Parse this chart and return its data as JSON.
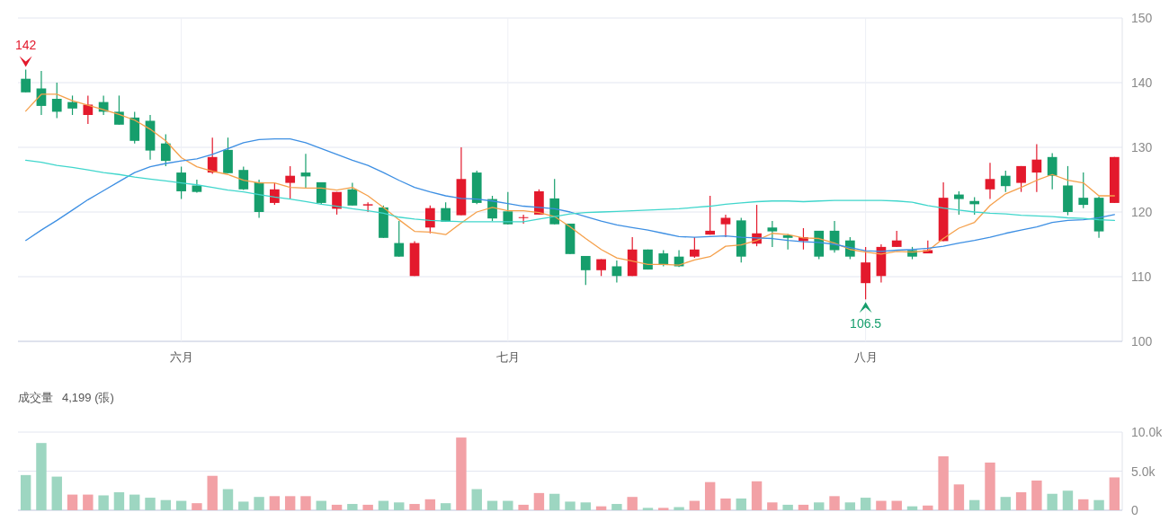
{
  "chart_data": [
    {
      "type": "candlestick",
      "categories": [
        null,
        null,
        null,
        null,
        null,
        null,
        null,
        null,
        null,
        null,
        "六月",
        null,
        null,
        null,
        null,
        null,
        null,
        null,
        null,
        null,
        null,
        null,
        null,
        null,
        null,
        null,
        null,
        null,
        null,
        null,
        null,
        "七月",
        null,
        null,
        null,
        null,
        null,
        null,
        null,
        null,
        null,
        null,
        null,
        null,
        null,
        null,
        null,
        null,
        null,
        null,
        null,
        null,
        null,
        null,
        "八月",
        null,
        null,
        null,
        null,
        null,
        null,
        null,
        null,
        null,
        null,
        null,
        null,
        null,
        null,
        null,
        null
      ],
      "ohlc": [
        [
          140.6,
          142,
          138.5,
          138.5
        ],
        [
          139.1,
          141.8,
          135.0,
          136.4
        ],
        [
          137.5,
          140.0,
          134.5,
          135.5
        ],
        [
          137.0,
          138.0,
          135.0,
          136.0
        ],
        [
          135.0,
          138.0,
          133.6,
          136.6
        ],
        [
          137.0,
          138.0,
          135.0,
          135.5
        ],
        [
          135.5,
          138.0,
          133.5,
          133.5
        ],
        [
          134.6,
          135.5,
          130.6,
          131.0
        ],
        [
          134.1,
          135.0,
          128.1,
          129.5
        ],
        [
          130.6,
          132.0,
          127.1,
          127.9
        ],
        [
          126.1,
          127.0,
          122.0,
          123.2
        ],
        [
          124.1,
          125.0,
          123.0,
          123.1
        ],
        [
          126.1,
          131.5,
          125.9,
          128.5
        ],
        [
          129.6,
          131.5,
          126.0,
          126.0
        ],
        [
          126.5,
          127.0,
          123.4,
          123.5
        ],
        [
          124.6,
          125.0,
          119.1,
          120.0
        ],
        [
          121.4,
          124.5,
          121.1,
          123.5
        ],
        [
          124.5,
          127.1,
          122.0,
          125.6
        ],
        [
          126.1,
          129.0,
          123.7,
          125.5
        ],
        [
          124.6,
          124.6,
          121.1,
          121.4
        ],
        [
          120.5,
          123.1,
          119.6,
          123.1
        ],
        [
          123.5,
          124.5,
          121.0,
          121.0
        ],
        [
          121.0,
          121.5,
          120.0,
          121.2
        ],
        [
          120.7,
          121.0,
          116.0,
          116.0
        ],
        [
          115.2,
          118.6,
          113.1,
          113.1
        ],
        [
          110.1,
          115.5,
          110.1,
          115.2
        ],
        [
          117.6,
          121.0,
          116.7,
          120.6
        ],
        [
          120.6,
          121.5,
          118.5,
          118.5
        ],
        [
          119.5,
          130.0,
          119.5,
          125.1
        ],
        [
          126.1,
          126.4,
          121.2,
          121.4
        ],
        [
          122.0,
          122.5,
          118.6,
          119.0
        ],
        [
          120.1,
          123.1,
          118.1,
          118.1
        ],
        [
          119.1,
          119.6,
          118.2,
          119.2
        ],
        [
          119.6,
          123.5,
          119.6,
          123.2
        ],
        [
          122.1,
          125.1,
          118.1,
          118.1
        ],
        [
          118.2,
          118.2,
          113.5,
          113.5
        ],
        [
          113.2,
          113.2,
          108.7,
          111.0
        ],
        [
          111.0,
          112.7,
          110.1,
          112.7
        ],
        [
          111.6,
          112.5,
          109.1,
          110.1
        ],
        [
          110.1,
          116.1,
          110.1,
          114.2
        ],
        [
          114.2,
          114.2,
          111.1,
          111.1
        ],
        [
          113.6,
          114.1,
          111.6,
          111.8
        ],
        [
          113.1,
          114.1,
          111.5,
          111.6
        ],
        [
          113.1,
          116.1,
          112.9,
          114.2
        ],
        [
          116.5,
          122.5,
          116.5,
          117.1
        ],
        [
          118.1,
          119.6,
          116.1,
          119.1
        ],
        [
          118.7,
          119.1,
          112.2,
          113.1
        ],
        [
          115.1,
          121.1,
          114.7,
          116.7
        ],
        [
          117.6,
          118.6,
          114.6,
          117.0
        ],
        [
          116.4,
          116.6,
          114.2,
          116.0
        ],
        [
          115.5,
          117.5,
          114.2,
          116.1
        ],
        [
          117.1,
          117.1,
          112.7,
          113.1
        ],
        [
          117.1,
          118.6,
          113.7,
          114.1
        ],
        [
          115.6,
          116.1,
          112.7,
          113.1
        ],
        [
          109.0,
          114.6,
          106.5,
          112.2
        ],
        [
          110.1,
          115.0,
          109.1,
          114.6
        ],
        [
          114.6,
          117.1,
          114.6,
          115.6
        ],
        [
          114.1,
          114.6,
          112.7,
          113.1
        ],
        [
          113.6,
          115.6,
          113.6,
          114.1
        ],
        [
          115.5,
          124.6,
          115.5,
          122.2
        ],
        [
          122.7,
          123.2,
          119.6,
          122.0
        ],
        [
          121.7,
          122.3,
          119.6,
          121.2
        ],
        [
          123.5,
          127.6,
          122.0,
          125.1
        ],
        [
          125.6,
          126.4,
          123.1,
          124.0
        ],
        [
          124.5,
          127.1,
          123.1,
          127.1
        ],
        [
          126.1,
          130.5,
          123.1,
          128.1
        ],
        [
          128.5,
          129.1,
          123.5,
          125.6
        ],
        [
          124.1,
          127.1,
          119.5,
          120.0
        ],
        [
          122.2,
          126.1,
          120.6,
          121.1
        ],
        [
          122.2,
          122.4,
          116.0,
          117.0
        ],
        [
          121.4,
          128.5,
          121.4,
          128.5
        ]
      ],
      "colors": [
        "#169e6c",
        "#169e6c",
        "#169e6c",
        "#169e6c",
        "#e3192c",
        "#169e6c",
        "#169e6c",
        "#169e6c",
        "#169e6c",
        "#169e6c",
        "#169e6c",
        "#169e6c",
        "#e3192c",
        "#169e6c",
        "#169e6c",
        "#169e6c",
        "#e3192c",
        "#e3192c",
        "#169e6c",
        "#169e6c",
        "#e3192c",
        "#169e6c",
        "#e3192c",
        "#169e6c",
        "#169e6c",
        "#e3192c",
        "#e3192c",
        "#169e6c",
        "#e3192c",
        "#169e6c",
        "#169e6c",
        "#169e6c",
        "#e3192c",
        "#e3192c",
        "#169e6c",
        "#169e6c",
        "#169e6c",
        "#e3192c",
        "#169e6c",
        "#e3192c",
        "#169e6c",
        "#169e6c",
        "#169e6c",
        "#e3192c",
        "#e3192c",
        "#e3192c",
        "#169e6c",
        "#e3192c",
        "#169e6c",
        "#169e6c",
        "#e3192c",
        "#169e6c",
        "#169e6c",
        "#169e6c",
        "#e3192c",
        "#e3192c",
        "#e3192c",
        "#169e6c",
        "#e3192c",
        "#e3192c",
        "#169e6c",
        "#169e6c",
        "#e3192c",
        "#169e6c",
        "#e3192c",
        "#e3192c",
        "#169e6c",
        "#169e6c",
        "#169e6c",
        "#169e6c",
        "#e3192c"
      ],
      "series": [
        {
          "type": "line",
          "color": "#f5a04b",
          "values": [
            135.6,
            138.2,
            138.2,
            137.2,
            136.5,
            135.8,
            135.1,
            134.2,
            132.8,
            131.0,
            128.4,
            127.0,
            126.3,
            125.8,
            124.9,
            124.5,
            124.5,
            123.8,
            123.7,
            123.7,
            123.4,
            123.8,
            122.5,
            120.7,
            118.8,
            117.0,
            116.9,
            116.5,
            118.3,
            120.0,
            120.7,
            120.2,
            120.2,
            119.9,
            119.3,
            117.7,
            115.9,
            114.2,
            112.9,
            112.4,
            111.9,
            111.9,
            111.8,
            112.6,
            113.1,
            114.7,
            114.9,
            115.6,
            116.7,
            116.5,
            116.0,
            115.9,
            115.2,
            114.2,
            113.8,
            113.5,
            113.9,
            113.8,
            114.0,
            115.9,
            117.5,
            118.4,
            121.0,
            122.8,
            123.8,
            124.9,
            125.8,
            124.9,
            124.5,
            122.5,
            122.5
          ]
        },
        {
          "type": "line",
          "color": "#3d8fe3",
          "values": [
            115.6,
            117.2,
            118.7,
            120.3,
            121.9,
            123.3,
            124.7,
            126.1,
            127.0,
            127.5,
            127.9,
            128.2,
            128.9,
            129.8,
            130.7,
            131.2,
            131.3,
            131.3,
            130.7,
            129.8,
            128.9,
            128.0,
            127.2,
            126.1,
            124.9,
            123.8,
            123.1,
            122.5,
            122.1,
            122.0,
            121.7,
            121.3,
            120.9,
            120.7,
            120.5,
            120.0,
            119.3,
            118.6,
            118.0,
            117.6,
            117.2,
            116.7,
            116.2,
            116.1,
            116.2,
            116.3,
            116.1,
            116.0,
            115.9,
            115.6,
            115.4,
            115.3,
            115.0,
            114.5,
            114.0,
            113.9,
            114.1,
            114.2,
            114.4,
            114.7,
            115.2,
            115.6,
            116.1,
            116.7,
            117.2,
            117.7,
            118.4,
            118.7,
            118.8,
            119.1,
            119.6
          ]
        },
        {
          "type": "line",
          "color": "#40d6cc",
          "values": [
            128.0,
            127.7,
            127.2,
            126.9,
            126.5,
            126.1,
            125.8,
            125.4,
            125.1,
            124.8,
            124.5,
            124.2,
            123.8,
            123.4,
            123.1,
            122.7,
            122.3,
            122.0,
            121.6,
            121.2,
            120.9,
            120.5,
            120.2,
            119.8,
            119.2,
            118.9,
            118.7,
            118.6,
            118.5,
            118.5,
            118.5,
            118.5,
            118.5,
            118.9,
            119.3,
            119.7,
            119.9,
            120.0,
            120.1,
            120.2,
            120.3,
            120.4,
            120.5,
            120.7,
            120.9,
            121.2,
            121.4,
            121.6,
            121.7,
            121.7,
            121.6,
            121.7,
            121.8,
            121.8,
            121.8,
            121.8,
            121.7,
            121.5,
            121.0,
            120.6,
            120.3,
            120.0,
            119.8,
            119.7,
            119.5,
            119.4,
            119.3,
            119.1,
            119.0,
            118.8,
            118.7
          ]
        }
      ],
      "annotations": [
        {
          "text": "142",
          "y": 142
        },
        {
          "text": "106.5",
          "y": 106.5
        }
      ],
      "ylim": [
        100,
        150
      ],
      "yticks": [
        100,
        110,
        120,
        130,
        140,
        150
      ],
      "grid": true
    },
    {
      "type": "bar",
      "title": "成交量",
      "subtitle": "4,199 (張)",
      "categories": [
        null,
        null,
        null,
        null,
        null,
        null,
        null,
        null,
        null,
        null,
        null,
        null,
        null,
        null,
        null,
        null,
        null,
        null,
        null,
        null,
        null,
        null,
        null,
        null,
        null,
        null,
        null,
        null,
        null,
        null,
        null,
        null,
        null,
        null,
        null,
        null,
        null,
        null,
        null,
        null,
        null,
        null,
        null,
        null,
        null,
        null,
        null,
        null,
        null,
        null,
        null,
        null,
        null,
        null,
        null,
        null,
        null,
        null,
        null,
        null,
        null,
        null,
        null,
        null,
        null,
        null,
        null,
        null,
        null,
        null,
        null
      ],
      "values": [
        4500,
        8600,
        4300,
        2000,
        2000,
        1900,
        2300,
        2000,
        1600,
        1300,
        1200,
        900,
        4400,
        2700,
        1100,
        1700,
        1800,
        1800,
        1800,
        1200,
        700,
        800,
        700,
        1200,
        1000,
        800,
        1400,
        900,
        9300,
        2700,
        1200,
        1200,
        700,
        2200,
        2100,
        1100,
        1000,
        500,
        800,
        1700,
        300,
        300,
        400,
        1200,
        3600,
        1500,
        1500,
        3700,
        1000,
        700,
        700,
        1000,
        1800,
        1000,
        1600,
        1200,
        1200,
        500,
        600,
        6900,
        3300,
        1300,
        6100,
        1700,
        2300,
        3800,
        2100,
        2500,
        1400,
        1300,
        4199
      ],
      "colors": [
        "#9dd6c1",
        "#9dd6c1",
        "#9dd6c1",
        "#f2a1a6",
        "#f2a1a6",
        "#9dd6c1",
        "#9dd6c1",
        "#9dd6c1",
        "#9dd6c1",
        "#9dd6c1",
        "#9dd6c1",
        "#f2a1a6",
        "#f2a1a6",
        "#9dd6c1",
        "#9dd6c1",
        "#9dd6c1",
        "#f2a1a6",
        "#f2a1a6",
        "#f2a1a6",
        "#9dd6c1",
        "#f2a1a6",
        "#9dd6c1",
        "#f2a1a6",
        "#9dd6c1",
        "#9dd6c1",
        "#f2a1a6",
        "#f2a1a6",
        "#9dd6c1",
        "#f2a1a6",
        "#9dd6c1",
        "#9dd6c1",
        "#9dd6c1",
        "#f2a1a6",
        "#f2a1a6",
        "#9dd6c1",
        "#9dd6c1",
        "#9dd6c1",
        "#f2a1a6",
        "#9dd6c1",
        "#f2a1a6",
        "#9dd6c1",
        "#f2a1a6",
        "#9dd6c1",
        "#f2a1a6",
        "#f2a1a6",
        "#f2a1a6",
        "#9dd6c1",
        "#f2a1a6",
        "#f2a1a6",
        "#9dd6c1",
        "#f2a1a6",
        "#9dd6c1",
        "#f2a1a6",
        "#9dd6c1",
        "#9dd6c1",
        "#f2a1a6",
        "#f2a1a6",
        "#9dd6c1",
        "#f2a1a6",
        "#f2a1a6",
        "#f2a1a6",
        "#9dd6c1",
        "#f2a1a6",
        "#9dd6c1",
        "#f2a1a6",
        "#f2a1a6",
        "#9dd6c1",
        "#9dd6c1",
        "#f2a1a6",
        "#9dd6c1",
        "#f2a1a6"
      ],
      "ylim": [
        0,
        10000
      ],
      "yticks": [
        {
          "value": 0,
          "label": "0"
        },
        {
          "value": 5000,
          "label": "5.0k"
        },
        {
          "value": 10000,
          "label": "10.0k"
        }
      ],
      "grid": "y",
      "tick_labels": "y"
    }
  ]
}
